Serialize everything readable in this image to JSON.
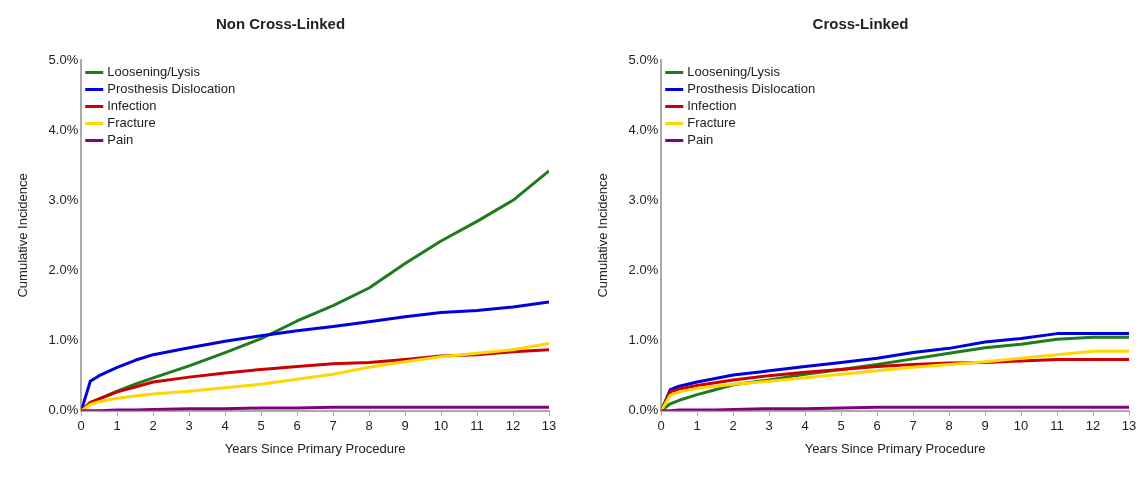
{
  "chart_data": [
    {
      "type": "line",
      "title": "Non Cross-Linked",
      "xlabel": "Years Since Primary Procedure",
      "ylabel": "Cumulative Incidence",
      "x": [
        0,
        0.25,
        0.5,
        1,
        1.5,
        2,
        3,
        4,
        5,
        6,
        7,
        8,
        9,
        10,
        11,
        12,
        13
      ],
      "series": [
        {
          "name": "Loosening/Lysis",
          "color": "#1e7b1e",
          "values": [
            0,
            0.1,
            0.17,
            0.28,
            0.38,
            0.47,
            0.64,
            0.83,
            1.03,
            1.28,
            1.5,
            1.75,
            2.1,
            2.42,
            2.7,
            3.0,
            3.42
          ]
        },
        {
          "name": "Prosthesis Dislocation",
          "color": "#0000dd",
          "values": [
            0,
            0.42,
            0.5,
            0.62,
            0.72,
            0.8,
            0.9,
            0.99,
            1.07,
            1.14,
            1.2,
            1.27,
            1.34,
            1.4,
            1.43,
            1.48,
            1.55
          ]
        },
        {
          "name": "Infection",
          "color": "#cc0000",
          "values": [
            0,
            0.12,
            0.17,
            0.27,
            0.34,
            0.41,
            0.48,
            0.54,
            0.59,
            0.63,
            0.67,
            0.69,
            0.73,
            0.78,
            0.8,
            0.84,
            0.87
          ]
        },
        {
          "name": "Fracture",
          "color": "#ffd700",
          "values": [
            0,
            0.09,
            0.13,
            0.18,
            0.21,
            0.24,
            0.28,
            0.33,
            0.38,
            0.45,
            0.52,
            0.62,
            0.7,
            0.77,
            0.82,
            0.87,
            0.96
          ]
        },
        {
          "name": "Pain",
          "color": "#800080",
          "values": [
            0,
            0,
            0,
            0.01,
            0.01,
            0.02,
            0.03,
            0.03,
            0.04,
            0.04,
            0.05,
            0.05,
            0.05,
            0.05,
            0.05,
            0.05,
            0.05
          ]
        }
      ],
      "xlim": [
        0,
        13
      ],
      "xticks": [
        0,
        1,
        2,
        3,
        4,
        5,
        6,
        7,
        8,
        9,
        10,
        11,
        12,
        13
      ],
      "ylim": [
        0,
        5
      ],
      "yticks": [
        {
          "value": 0,
          "label": "0.0%"
        },
        {
          "value": 1,
          "label": "1.0%"
        },
        {
          "value": 2,
          "label": "2.0%"
        },
        {
          "value": 3,
          "label": "3.0%"
        },
        {
          "value": 4,
          "label": "4.0%"
        },
        {
          "value": 5,
          "label": "5.0%"
        }
      ],
      "grid": false,
      "legend": "top left",
      "marker": "none"
    },
    {
      "type": "line",
      "title": "Cross-Linked",
      "xlabel": "Years Since Primary Procedure",
      "ylabel": "Cumulative Incidence",
      "x": [
        0,
        0.25,
        0.5,
        1,
        1.5,
        2,
        3,
        4,
        5,
        6,
        7,
        8,
        9,
        10,
        11,
        12,
        13
      ],
      "series": [
        {
          "name": "Loosening/Lysis",
          "color": "#1e7b1e",
          "values": [
            0,
            0.1,
            0.15,
            0.23,
            0.3,
            0.37,
            0.44,
            0.52,
            0.59,
            0.66,
            0.74,
            0.82,
            0.9,
            0.95,
            1.02,
            1.05,
            1.05
          ]
        },
        {
          "name": "Prosthesis Dislocation",
          "color": "#0000dd",
          "values": [
            0,
            0.3,
            0.35,
            0.41,
            0.46,
            0.51,
            0.57,
            0.63,
            0.69,
            0.75,
            0.83,
            0.89,
            0.98,
            1.03,
            1.1,
            1.1,
            1.1
          ]
        },
        {
          "name": "Infection",
          "color": "#cc0000",
          "values": [
            0,
            0.27,
            0.31,
            0.36,
            0.4,
            0.44,
            0.5,
            0.55,
            0.59,
            0.63,
            0.66,
            0.68,
            0.69,
            0.71,
            0.73,
            0.73,
            0.73
          ]
        },
        {
          "name": "Fracture",
          "color": "#ffd700",
          "values": [
            0,
            0.22,
            0.27,
            0.32,
            0.35,
            0.38,
            0.42,
            0.47,
            0.52,
            0.57,
            0.62,
            0.66,
            0.7,
            0.75,
            0.8,
            0.85,
            0.85
          ]
        },
        {
          "name": "Pain",
          "color": "#800080",
          "values": [
            0,
            0,
            0.01,
            0.01,
            0.01,
            0.02,
            0.03,
            0.03,
            0.04,
            0.05,
            0.05,
            0.05,
            0.05,
            0.05,
            0.05,
            0.05,
            0.05
          ]
        }
      ],
      "xlim": [
        0,
        13
      ],
      "xticks": [
        0,
        1,
        2,
        3,
        4,
        5,
        6,
        7,
        8,
        9,
        10,
        11,
        12,
        13
      ],
      "ylim": [
        0,
        5
      ],
      "yticks": [
        {
          "value": 0,
          "label": "0.0%"
        },
        {
          "value": 1,
          "label": "1.0%"
        },
        {
          "value": 2,
          "label": "2.0%"
        },
        {
          "value": 3,
          "label": "3.0%"
        },
        {
          "value": 4,
          "label": "4.0%"
        },
        {
          "value": 5,
          "label": "5.0%"
        }
      ],
      "grid": false,
      "legend": "top left",
      "marker": "none"
    }
  ]
}
